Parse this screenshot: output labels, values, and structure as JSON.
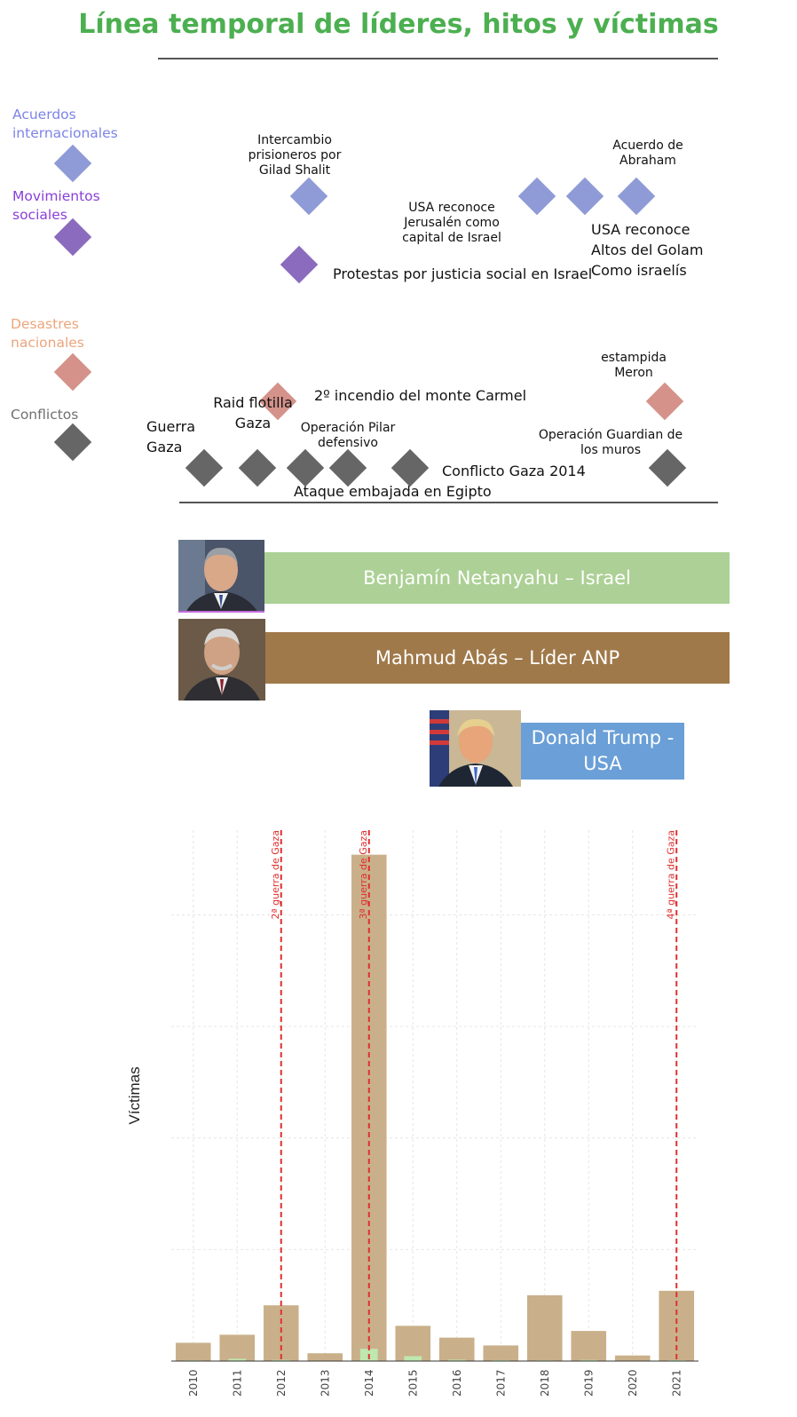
{
  "title": "Línea temporal de líderes, hitos y víctimas",
  "legend": [
    {
      "label": "Acuerdos internacionales",
      "color": "#8f9bd6"
    },
    {
      "label": "Movimientos sociales",
      "color": "#8a6bbd"
    },
    {
      "label": "Desastres nacionales",
      "color": "#d4928a"
    },
    {
      "label": "Conflictos",
      "color": "#666666"
    }
  ],
  "legend_label_colors": [
    "#7d84e6",
    "#8a3fd9",
    "#eba57c",
    "#707070"
  ],
  "events": {
    "shalit": "Intercambio\nprisioneros por\nGilad Shalit",
    "jerusalen": "USA reconoce\nJerusalén como\ncapital de Israel",
    "abraham": "Acuerdo de\nAbraham",
    "golam": "USA reconoce\nAltos del Golam\nComo israelís",
    "protestas": "Protestas por justicia social en Israel",
    "meron": "estampida\nMeron",
    "flotilla": "Raid flotilla\nGaza",
    "carmel": "2º incendio del monte Carmel",
    "guerra": "Guerra\nGaza",
    "pilar": "Operación Pilar\ndefensivo",
    "guardian": "Operación Guardian de\nlos muros",
    "gaza2014": "Conflicto Gaza 2014",
    "embajada": "Ataque embajada en Egipto"
  },
  "leaders": [
    {
      "label": "Benjamín Netanyahu – Israel",
      "color": "#acd095"
    },
    {
      "label": "Mahmud Abás – Líder ANP",
      "color": "#a0794a"
    },
    {
      "label": "Donald Trump -\nUSA",
      "color": "#6a9fd7"
    }
  ],
  "chart_data": {
    "type": "bar",
    "categories": [
      "2010",
      "2011",
      "2012",
      "2013",
      "2014",
      "2015",
      "2016",
      "2017",
      "2018",
      "2019",
      "2020",
      "2021"
    ],
    "series": [
      {
        "values": [
          82,
          118,
          250,
          35,
          2270,
          158,
          105,
          70,
          295,
          135,
          25,
          315
        ],
        "color": "#c9b08a"
      },
      {
        "values": [
          3,
          10,
          5,
          1,
          55,
          22,
          6,
          4,
          3,
          5,
          1,
          4
        ],
        "color": "#bfe7b0"
      }
    ],
    "ylabel": "Víctimas",
    "ylim": [
      0,
      2380
    ],
    "vlines": [
      {
        "x": "2012",
        "label": "2ª guerra de Gaza",
        "color": "#e03030"
      },
      {
        "x": "2014",
        "label": "3ª guerra de Gaza",
        "color": "#e03030"
      },
      {
        "x": "2021",
        "label": "4ª guerra de Gaza",
        "color": "#e03030"
      }
    ],
    "grid": true
  }
}
